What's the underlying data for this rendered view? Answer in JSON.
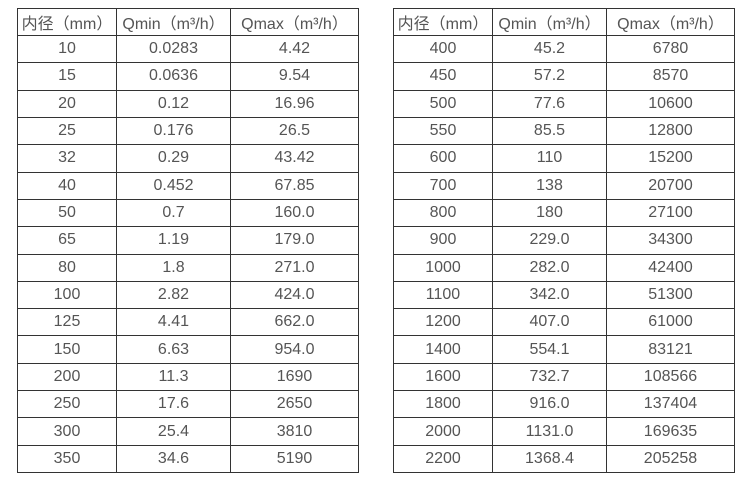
{
  "colors": {
    "background": "#ffffff",
    "border": "#333333",
    "text": "#555555"
  },
  "tables": [
    {
      "name": "small-diameters",
      "headers": [
        "内径（mm）",
        "Qmin（m³/h）",
        "Qmax（m³/h）"
      ],
      "rows": [
        [
          "10",
          "0.0283",
          "4.42"
        ],
        [
          "15",
          "0.0636",
          "9.54"
        ],
        [
          "20",
          "0.12",
          "16.96"
        ],
        [
          "25",
          "0.176",
          "26.5"
        ],
        [
          "32",
          "0.29",
          "43.42"
        ],
        [
          "40",
          "0.452",
          "67.85"
        ],
        [
          "50",
          "0.7",
          "160.0"
        ],
        [
          "65",
          "1.19",
          "179.0"
        ],
        [
          "80",
          "1.8",
          "271.0"
        ],
        [
          "100",
          "2.82",
          "424.0"
        ],
        [
          "125",
          "4.41",
          "662.0"
        ],
        [
          "150",
          "6.63",
          "954.0"
        ],
        [
          "200",
          "11.3",
          "1690"
        ],
        [
          "250",
          "17.6",
          "2650"
        ],
        [
          "300",
          "25.4",
          "3810"
        ],
        [
          "350",
          "34.6",
          "5190"
        ]
      ]
    },
    {
      "name": "large-diameters",
      "headers": [
        "内径（mm）",
        "Qmin（m³/h）",
        "Qmax（m³/h）"
      ],
      "rows": [
        [
          "400",
          "45.2",
          "6780"
        ],
        [
          "450",
          "57.2",
          "8570"
        ],
        [
          "500",
          "77.6",
          "10600"
        ],
        [
          "550",
          "85.5",
          "12800"
        ],
        [
          "600",
          "110",
          "15200"
        ],
        [
          "700",
          "138",
          "20700"
        ],
        [
          "800",
          "180",
          "27100"
        ],
        [
          "900",
          "229.0",
          "34300"
        ],
        [
          "1000",
          "282.0",
          "42400"
        ],
        [
          "1100",
          "342.0",
          "51300"
        ],
        [
          "1200",
          "407.0",
          "61000"
        ],
        [
          "1400",
          "554.1",
          "83121"
        ],
        [
          "1600",
          "732.7",
          "108566"
        ],
        [
          "1800",
          "916.0",
          "137404"
        ],
        [
          "2000",
          "1131.0",
          "169635"
        ],
        [
          "2200",
          "1368.4",
          "205258"
        ]
      ]
    }
  ]
}
